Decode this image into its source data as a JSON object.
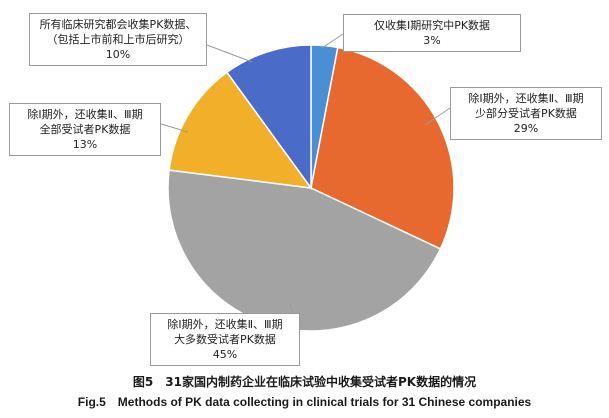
{
  "chart_data": {
    "type": "pie",
    "slices": [
      {
        "label_lines": [
          "仅收集Ⅰ期研究中PK数据"
        ],
        "percent_label": "3%",
        "value": 3,
        "color": "#4a8fd4"
      },
      {
        "label_lines": [
          "除Ⅰ期外，还收集Ⅱ、Ⅲ期",
          "少部分受试者PK数据"
        ],
        "percent_label": "29%",
        "value": 29,
        "color": "#e8692f"
      },
      {
        "label_lines": [
          "除Ⅰ期外，还收集Ⅱ、Ⅲ期",
          "大多数受试者PK数据"
        ],
        "percent_label": "45%",
        "value": 45,
        "color": "#a3a3a3"
      },
      {
        "label_lines": [
          "除Ⅰ期外，还收集Ⅱ、Ⅲ期",
          "全部受试者PK数据"
        ],
        "percent_label": "13%",
        "value": 13,
        "color": "#f2b02a"
      },
      {
        "label_lines": [
          "所有临床研究都会收集PK数据、",
          "（包括上市前和上市后研究）"
        ],
        "percent_label": "10%",
        "value": 10,
        "color": "#4a6bc8"
      }
    ],
    "title": "图5　31家国内制药企业在临床试验中收集受试者PK数据的情况",
    "subtitle": "Fig.5　Methods of PK data collecting in clinical trials for 31 Chinese companies"
  }
}
